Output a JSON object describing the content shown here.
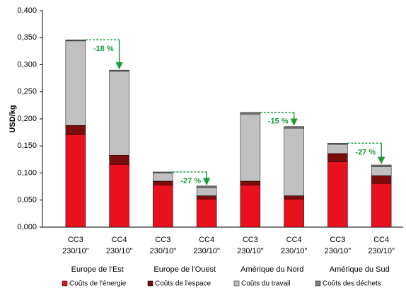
{
  "chart_data": {
    "type": "stacked-bar",
    "y_label": "USD/kg",
    "categories": [
      [
        "CC3",
        "230/10\""
      ],
      [
        "CC4",
        "230/10\""
      ],
      [
        "CC3",
        "230/10\""
      ],
      [
        "CC4",
        "230/10\""
      ],
      [
        "CC3",
        "230/10\""
      ],
      [
        "CC4",
        "230/10\""
      ],
      [
        "CC3",
        "230/10\""
      ],
      [
        "CC4",
        "230/10\""
      ]
    ],
    "groups": [
      "Europe de l'Est",
      "Europe de l'Ouest",
      "Amérique du Nord",
      "Amérique du Sud"
    ],
    "series": [
      {
        "name": "Coûts de l'énergie",
        "color": "#e8111e",
        "values": [
          0.171,
          0.116,
          0.078,
          0.052,
          0.078,
          0.052,
          0.121,
          0.081
        ]
      },
      {
        "name": "Coûts de l'espace",
        "color": "#7a0c0c",
        "values": [
          0.017,
          0.017,
          0.007,
          0.006,
          0.007,
          0.006,
          0.015,
          0.014
        ]
      },
      {
        "name": "Coûts du travail",
        "color": "#c0c0c0",
        "values": [
          0.156,
          0.155,
          0.015,
          0.015,
          0.124,
          0.125,
          0.017,
          0.017
        ]
      },
      {
        "name": "Coûts des déchets",
        "color": "#808080",
        "values": [
          0.002,
          0.002,
          0.002,
          0.003,
          0.003,
          0.003,
          0.002,
          0.003
        ]
      }
    ],
    "annotations": [
      "-18 %",
      "-27 %",
      "-15 %",
      "-27 %"
    ],
    "annotation_color": "#1a9a3a",
    "ylim": [
      0,
      0.4
    ],
    "yticks": [
      {
        "value": 0,
        "label": "0,000"
      },
      {
        "value": 0.05,
        "label": "0,050"
      },
      {
        "value": 0.1,
        "label": "0,100"
      },
      {
        "value": 0.15,
        "label": "0,150"
      },
      {
        "value": 0.2,
        "label": "0,200"
      },
      {
        "value": 0.25,
        "label": "0,250"
      },
      {
        "value": 0.3,
        "label": "0,300"
      },
      {
        "value": 0.35,
        "label": "0,350"
      },
      {
        "value": 0.4,
        "label": "0,400"
      }
    ]
  }
}
